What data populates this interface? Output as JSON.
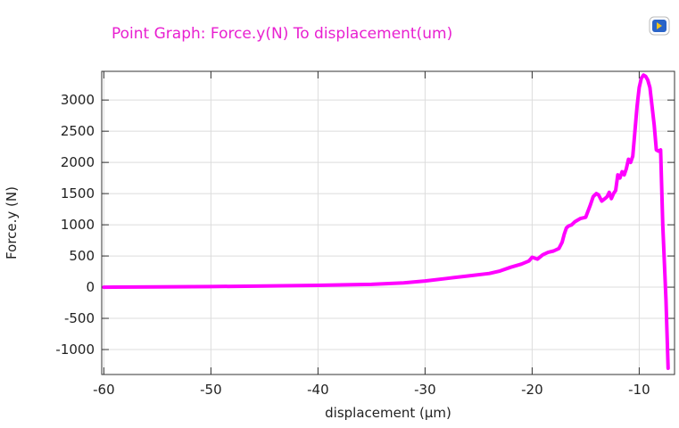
{
  "colors": {
    "series": "#ff00ff",
    "title": "#e81fd0",
    "grid": "#dcdcdc",
    "frame": "#333333",
    "logo_blue": "#2a64c8",
    "logo_yellow": "#f2c21b"
  },
  "logo": {
    "icon": "comsol-graphics-icon"
  },
  "chart_data": {
    "type": "line",
    "title": "Point Graph: Force.y(N) To displacement(um)",
    "xlabel": "displacement (µm)",
    "ylabel": "Force.y (N)",
    "xlim": [
      -60.2,
      -6.7
    ],
    "ylim": [
      -1400,
      3460
    ],
    "xticks": [
      -60,
      -50,
      -40,
      -30,
      -20,
      -10
    ],
    "yticks": [
      -1000,
      -500,
      0,
      500,
      1000,
      1500,
      2000,
      2500,
      3000
    ],
    "xtick_labels": [
      "-60",
      "-50",
      "-40",
      "-30",
      "-20",
      "-10"
    ],
    "ytick_labels": [
      "-1000",
      "-500",
      "0",
      "500",
      "1000",
      "1500",
      "2000",
      "2500",
      "3000"
    ],
    "grid": true,
    "series": [
      {
        "name": "",
        "x": [
          -60,
          -55,
          -50,
          -45,
          -40,
          -35,
          -32,
          -30,
          -28,
          -26,
          -24,
          -23,
          -22,
          -21,
          -20.3,
          -20,
          -19.5,
          -19,
          -18.5,
          -18,
          -17.5,
          -17.2,
          -17,
          -16.8,
          -16.6,
          -16.3,
          -16,
          -15.5,
          -15,
          -14.6,
          -14.3,
          -14,
          -13.8,
          -13.5,
          -13.2,
          -13,
          -12.8,
          -12.6,
          -12.4,
          -12.2,
          -12,
          -11.8,
          -11.6,
          -11.4,
          -11.2,
          -11,
          -10.8,
          -10.6,
          -10.4,
          -10.2,
          -10,
          -9.8,
          -9.6,
          -9.4,
          -9.2,
          -9,
          -8.8,
          -8.6,
          -8.4,
          -8.2,
          -8,
          -7.8,
          -7.5,
          -7.3
        ],
        "y": [
          0,
          5,
          10,
          20,
          30,
          45,
          70,
          100,
          140,
          180,
          220,
          260,
          320,
          370,
          420,
          480,
          450,
          520,
          560,
          580,
          620,
          720,
          850,
          950,
          980,
          1000,
          1050,
          1100,
          1120,
          1300,
          1450,
          1500,
          1480,
          1380,
          1420,
          1450,
          1520,
          1420,
          1500,
          1550,
          1800,
          1750,
          1850,
          1800,
          1900,
          2050,
          2000,
          2100,
          2500,
          2900,
          3200,
          3350,
          3400,
          3380,
          3320,
          3200,
          2900,
          2600,
          2200,
          2180,
          2200,
          1000,
          -200,
          -1300
        ]
      }
    ]
  }
}
